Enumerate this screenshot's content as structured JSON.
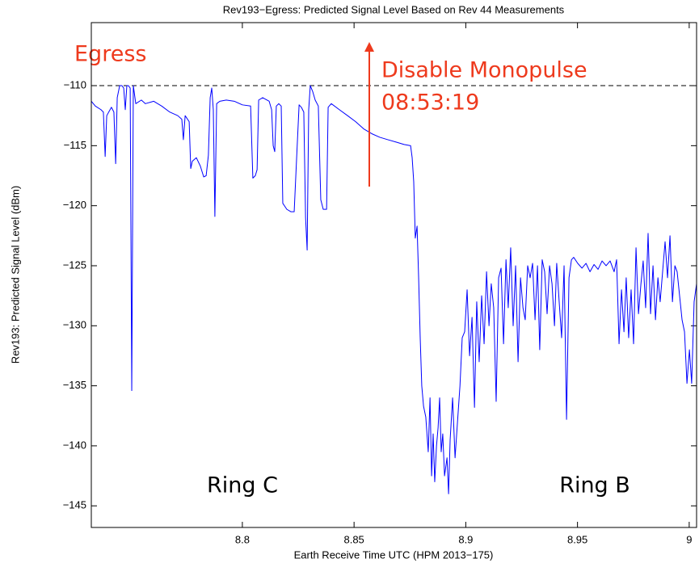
{
  "chart_data": {
    "type": "line",
    "title": "Rev193−Egress: Predicted Signal Level Based on Rev 44 Measurements",
    "xlabel": "Earth Receive Time UTC (HPM 2013−175)",
    "ylabel": "Rev193: Predicted Signal Level (dBm)",
    "xlim": [
      8.7324,
      9.0033
    ],
    "ylim": [
      -146.8,
      -104.75
    ],
    "xticks": [
      8.8,
      8.85,
      8.9,
      8.95,
      9
    ],
    "yticks": [
      {
        "value": -145,
        "label": "−145"
      },
      {
        "value": -140,
        "label": "−140"
      },
      {
        "value": -135,
        "label": "−135"
      },
      {
        "value": -130,
        "label": "−130"
      },
      {
        "value": -125,
        "label": "−125"
      },
      {
        "value": -120,
        "label": "−120"
      },
      {
        "value": -115,
        "label": "−115"
      },
      {
        "value": -110,
        "label": "−110"
      }
    ],
    "grid": false,
    "reference_line": {
      "value": -110,
      "style": "dashed",
      "color": "#000000"
    },
    "annotations": [
      {
        "text": "Egress",
        "color": "#ee3a1d"
      },
      {
        "text": "Disable Monopulse",
        "color": "#ee3a1d"
      },
      {
        "text": "08:53:19",
        "color": "#ee3a1d"
      },
      {
        "text": "Ring C",
        "color": "#000000"
      },
      {
        "text": "Ring B",
        "color": "#000000"
      }
    ],
    "x": [
      8.7324,
      8.7342,
      8.7367,
      8.7378,
      8.7386,
      8.7393,
      8.7414,
      8.7425,
      8.7433,
      8.744,
      8.7451,
      8.7461,
      8.7469,
      8.7476,
      8.7483,
      8.749,
      8.7498,
      8.7505,
      8.7512,
      8.7523,
      8.7548,
      8.7566,
      8.7603,
      8.7639,
      8.7675,
      8.7711,
      8.7729,
      8.7736,
      8.7744,
      8.7762,
      8.7769,
      8.7776,
      8.7794,
      8.7812,
      8.7827,
      8.7838,
      8.7848,
      8.7856,
      8.7863,
      8.787,
      8.7877,
      8.7885,
      8.7899,
      8.7928,
      8.7964,
      8.8,
      8.8037,
      8.8047,
      8.8058,
      8.8066,
      8.8073,
      8.8091,
      8.812,
      8.8131,
      8.8138,
      8.8145,
      8.8152,
      8.8163,
      8.8174,
      8.8181,
      8.8199,
      8.8217,
      8.8232,
      8.8243,
      8.8254,
      8.8264,
      8.8275,
      8.8283,
      8.829,
      8.8297,
      8.8304,
      8.8315,
      8.8326,
      8.834,
      8.8351,
      8.8362,
      8.8377,
      8.8384,
      8.8398,
      8.8434,
      8.8471,
      8.8507,
      8.8543,
      8.8579,
      8.8615,
      8.8651,
      8.8688,
      8.8724,
      8.8753,
      8.876,
      8.8767,
      8.8774,
      8.8782,
      8.8789,
      8.8796,
      8.8803,
      8.8811,
      8.8821,
      8.8832,
      8.884,
      8.8847,
      8.8854,
      8.8861,
      8.8869,
      8.8876,
      8.8883,
      8.889,
      8.8897,
      8.8905,
      8.8916,
      8.8923,
      8.893,
      8.8941,
      8.8952,
      8.8963,
      8.8974,
      8.8984,
      8.8995,
      8.9006,
      8.9017,
      8.9028,
      8.9039,
      8.9049,
      8.906,
      8.9071,
      8.9082,
      8.9093,
      8.9104,
      8.9114,
      8.9125,
      8.9136,
      8.9147,
      8.9158,
      8.9169,
      8.918,
      8.919,
      8.9201,
      8.9212,
      8.9223,
      8.9234,
      8.9245,
      8.9256,
      8.9266,
      8.9277,
      8.9288,
      8.9299,
      8.931,
      8.9321,
      8.9331,
      8.9342,
      8.9353,
      8.9364,
      8.9375,
      8.9386,
      8.9397,
      8.9407,
      8.9418,
      8.9429,
      8.944,
      8.9451,
      8.9462,
      8.9473,
      8.9483,
      8.9501,
      8.952,
      8.9538,
      8.9556,
      8.9574,
      8.9592,
      8.961,
      8.9628,
      8.9646,
      8.9664,
      8.9675,
      8.9686,
      8.9697,
      8.9708,
      8.9718,
      8.9729,
      8.974,
      8.9751,
      8.9762,
      8.9773,
      8.9784,
      8.9794,
      8.9805,
      8.9816,
      8.9827,
      8.9838,
      8.9849,
      8.986,
      8.987,
      8.9881,
      8.9892,
      8.9903,
      8.9914,
      8.9925,
      8.9936,
      8.9946,
      8.9957,
      8.9968,
      8.9979,
      8.999,
      9.0001,
      9.0011,
      9.0022,
      9.0033
    ],
    "series": [
      {
        "name": "Rev193",
        "color": "#0000ff",
        "values": [
          -111.3,
          -111.7,
          -112.0,
          -112.2,
          -115.9,
          -112.5,
          -111.8,
          -112.2,
          -116.5,
          -111,
          -110,
          -110,
          -110.2,
          -112,
          -110,
          -110,
          -110.2,
          -135.4,
          -110,
          -111.5,
          -111.2,
          -111.5,
          -111.3,
          -111.7,
          -112.2,
          -112.5,
          -112.8,
          -114.5,
          -112.5,
          -113,
          -116.9,
          -116.3,
          -116,
          -116.7,
          -117.6,
          -117.5,
          -115.8,
          -111,
          -110.2,
          -112,
          -120.9,
          -111.5,
          -111.3,
          -111.2,
          -111.3,
          -111.6,
          -111.7,
          -117.7,
          -117.5,
          -117,
          -111.2,
          -111,
          -111.3,
          -112,
          -115,
          -115.5,
          -111.7,
          -111.5,
          -111.7,
          -119.8,
          -120.3,
          -120.5,
          -120.5,
          -116,
          -111.6,
          -111.8,
          -112.2,
          -121,
          -123.7,
          -112,
          -110,
          -110.5,
          -111.2,
          -111.7,
          -119.5,
          -120.3,
          -120.3,
          -111.8,
          -111.5,
          -112,
          -112.5,
          -113,
          -113.6,
          -114,
          -114.3,
          -114.5,
          -114.7,
          -114.9,
          -115,
          -116,
          -118,
          -122.7,
          -121.7,
          -126,
          -131,
          -135,
          -136.7,
          -137.6,
          -140.5,
          -136,
          -142.5,
          -139,
          -143,
          -140,
          -138.5,
          -136,
          -140.5,
          -139,
          -142.5,
          -141,
          -144,
          -139.5,
          -136,
          -141,
          -138,
          -135,
          -131,
          -130.5,
          -127,
          -132.5,
          -129.3,
          -136.8,
          -128,
          -133,
          -127.5,
          -131.5,
          -125.5,
          -130,
          -126.5,
          -128.5,
          -136.3,
          -126,
          -125.2,
          -131.5,
          -124.5,
          -128.5,
          -123.5,
          -130,
          -125,
          -133,
          -126,
          -128.5,
          -129.5,
          -125,
          -126,
          -124.8,
          -129.5,
          -125,
          -132,
          -124.5,
          -125.5,
          -129,
          -125,
          -126.5,
          -130,
          -124.8,
          -128,
          -131,
          -125,
          -137.8,
          -126,
          -124.5,
          -124.3,
          -124.8,
          -125.2,
          -124.8,
          -125.5,
          -124.9,
          -125.3,
          -124.6,
          -125,
          -124.6,
          -125.5,
          -124.5,
          -131.5,
          -127,
          -130.5,
          -126,
          -131,
          -127,
          -131.5,
          -123.5,
          -129,
          -126.5,
          -124.6,
          -128.5,
          -122.3,
          -129,
          -125,
          -129.5,
          -126,
          -128,
          -125.5,
          -123,
          -126,
          -122.5,
          -128,
          -125,
          -125.5,
          -127.5,
          -129.5,
          -130.5,
          -134.8,
          -132,
          -134.8,
          -128,
          -126.5
        ]
      }
    ]
  }
}
